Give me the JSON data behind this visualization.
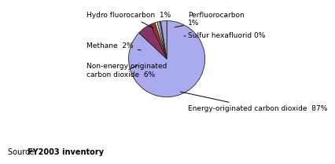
{
  "slices": [
    {
      "label": "Energy-originated carbon dioxide  87%",
      "value": 87,
      "color": "#aaaaee"
    },
    {
      "label": "Non-energy originated\ncarbon dioxide  6%",
      "value": 6,
      "color": "#883366"
    },
    {
      "label": "Methane  2%",
      "value": 2,
      "color": "#993333"
    },
    {
      "label": "Hydro fluorocarbon  1%",
      "value": 1,
      "color": "#eeeeaa"
    },
    {
      "label": "Perfluorocarbon\n1%",
      "value": 1,
      "color": "#aaccee"
    },
    {
      "label": "Sulfur hexafluorid 0%",
      "value": 0.5,
      "color": "#ee9999"
    },
    {
      "label": "",
      "value": 2.5,
      "color": "#aaaaee"
    }
  ],
  "source_label1": "Source:  ",
  "source_label2": "FY2003 inventory",
  "background_color": "#ffffff",
  "label_color": "#000000",
  "font_size": 6.5
}
